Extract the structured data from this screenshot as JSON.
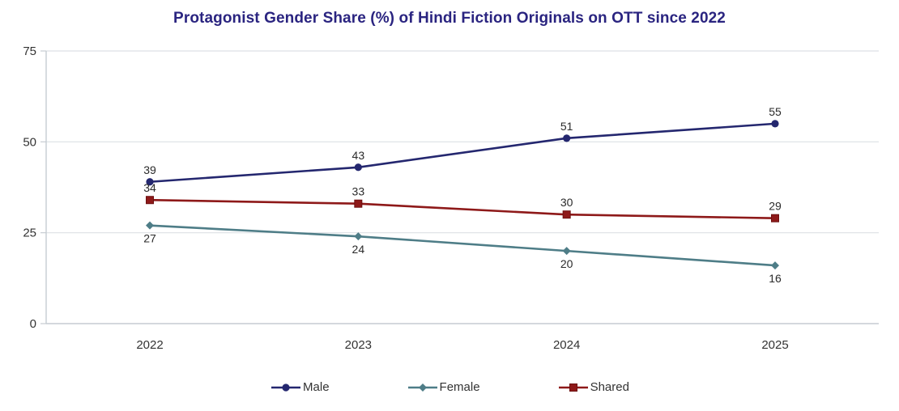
{
  "title": "Protagonist Gender Share (%) of Hindi Fiction Originals on OTT since 2022",
  "chart_data": {
    "type": "line",
    "title": "Protagonist Gender Share (%) of Hindi Fiction Originals on OTT since 2022",
    "categories": [
      "2022",
      "2023",
      "2024",
      "2025"
    ],
    "series": [
      {
        "name": "Male",
        "values": [
          39,
          43,
          51,
          55
        ],
        "color": "#24276f",
        "marker": "circle",
        "label_position": "above"
      },
      {
        "name": "Female",
        "values": [
          27,
          24,
          20,
          16
        ],
        "color": "#4e7d87",
        "marker": "diamond",
        "label_position": "below"
      },
      {
        "name": "Shared",
        "values": [
          34,
          33,
          30,
          29
        ],
        "color": "#8e1919",
        "marker": "square",
        "label_position": "above"
      }
    ],
    "xlabel": "",
    "ylabel": "",
    "ylim": [
      0,
      75
    ],
    "yticks": [
      0,
      25,
      50,
      75
    ],
    "grid": true,
    "legend_position": "bottom",
    "data_labels": true
  },
  "colors": {
    "title": "#2a2480",
    "axis_text": "#333333",
    "data_label_text": "#2a2a2a",
    "grid_line": "#dde1e5",
    "axis_line": "#c6ccd2"
  }
}
